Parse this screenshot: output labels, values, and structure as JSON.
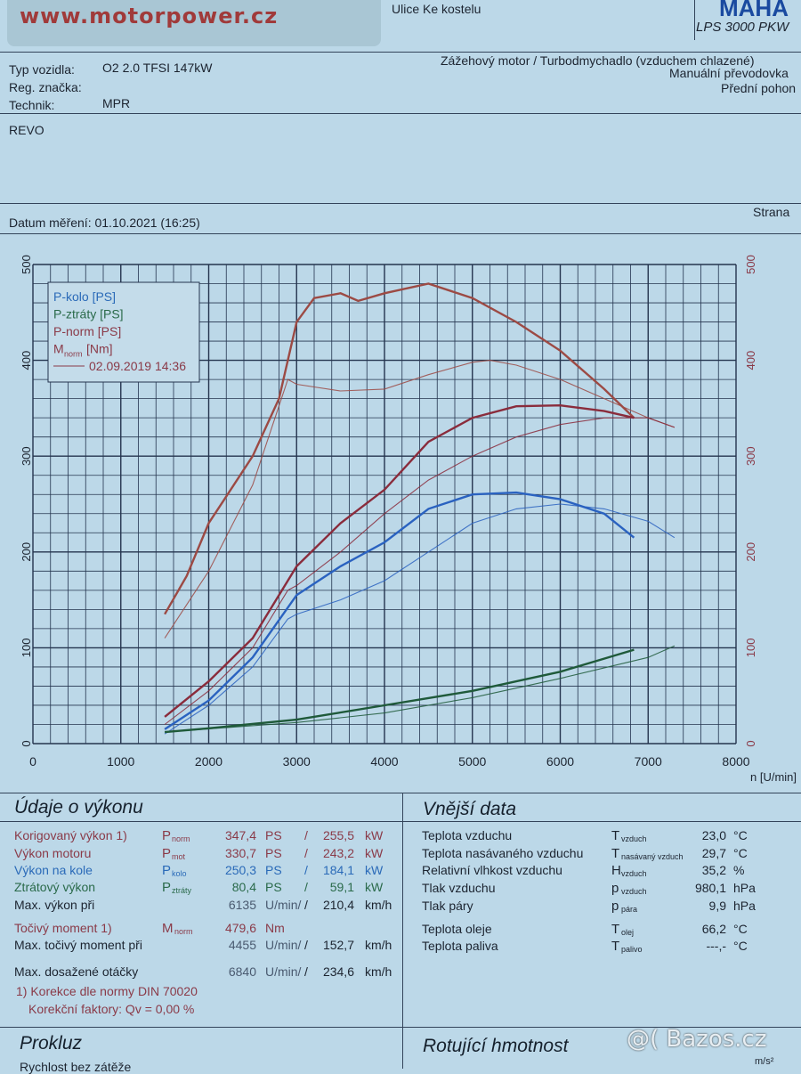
{
  "header": {
    "logo": "www.motorpower.cz",
    "address": "Ulice Ke kostelu",
    "brand": "MAHA",
    "model": "LPS 3000 PKW"
  },
  "vehicle": {
    "type_label": "Typ vozidla:",
    "type": "O2 2.0 TFSI 147kW",
    "reg_label": "Reg. značka:",
    "reg": "",
    "tech_label": "Technik:",
    "tech": "MPR",
    "engine": "Zážehový motor / Turbodmychadlo (vzduchem chlazené)",
    "gearbox": "Manuální převodovka",
    "drive": "Přední pohon",
    "note": "REVO",
    "date": "Datum měření: 01.10.2021 (16:25)",
    "page": "Strana"
  },
  "chart_data": {
    "type": "line",
    "xlabel": "n [U/min]",
    "xlim": [
      0,
      8000
    ],
    "ylim": [
      0,
      500
    ],
    "grid": true,
    "legend_placement": "top-left",
    "xticks": [
      "0",
      "1000",
      "2000",
      "3000",
      "4000",
      "5000",
      "6000",
      "7000",
      "8000"
    ],
    "yticks": [
      "0",
      "100",
      "200",
      "300",
      "400",
      "500"
    ],
    "legend": [
      "P-kolo [PS]",
      "P-ztráty [PS]",
      "P-norm [PS]",
      "Mnorm [Nm]",
      "02.09.2019 14:36"
    ],
    "colors": {
      "kolo": "#2a62c0",
      "ztraty": "#1f5a3a",
      "norm": "#8a2c3c",
      "mnorm": "#9c4a44"
    },
    "series": [
      {
        "name": "Mnorm [Nm]",
        "key": "mnorm",
        "run": "current",
        "x": [
          1500,
          1750,
          2000,
          2500,
          2800,
          3000,
          3200,
          3500,
          3700,
          4000,
          4500,
          5000,
          5500,
          6000,
          6500,
          6840
        ],
        "y": [
          135,
          175,
          230,
          300,
          360,
          440,
          465,
          470,
          462,
          470,
          480,
          465,
          440,
          410,
          370,
          340
        ]
      },
      {
        "name": "Mnorm [Nm]",
        "key": "mnorm",
        "run": "02.09.2019 14:36",
        "x": [
          1500,
          2000,
          2500,
          2900,
          3000,
          3500,
          4000,
          4500,
          5000,
          5200,
          5500,
          6000,
          6500,
          7000,
          7300
        ],
        "y": [
          110,
          180,
          270,
          380,
          375,
          368,
          370,
          385,
          398,
          400,
          395,
          380,
          360,
          340,
          330
        ]
      },
      {
        "name": "P-norm [PS]",
        "key": "norm",
        "run": "current",
        "x": [
          1500,
          2000,
          2500,
          3000,
          3500,
          4000,
          4500,
          5000,
          5500,
          6000,
          6500,
          6840
        ],
        "y": [
          28,
          65,
          110,
          185,
          230,
          265,
          315,
          340,
          352,
          353,
          347,
          340
        ]
      },
      {
        "name": "P-norm [PS]",
        "key": "norm",
        "run": "02.09.2019 14:36",
        "x": [
          1500,
          2000,
          2500,
          2900,
          3000,
          3500,
          4000,
          4500,
          5000,
          5500,
          6000,
          6500,
          7000,
          7300
        ],
        "y": [
          20,
          55,
          100,
          160,
          165,
          200,
          240,
          275,
          300,
          320,
          333,
          340,
          340,
          330
        ]
      },
      {
        "name": "P-kolo [PS]",
        "key": "kolo",
        "run": "current",
        "x": [
          1500,
          2000,
          2500,
          3000,
          3500,
          4000,
          4500,
          5000,
          5500,
          6000,
          6500,
          6840
        ],
        "y": [
          15,
          45,
          90,
          155,
          185,
          210,
          245,
          260,
          262,
          255,
          240,
          215
        ]
      },
      {
        "name": "P-kolo [PS]",
        "key": "kolo",
        "run": "02.09.2019 14:36",
        "x": [
          1500,
          2000,
          2500,
          2900,
          3000,
          3500,
          4000,
          4500,
          5000,
          5500,
          6000,
          6500,
          7000,
          7300
        ],
        "y": [
          10,
          40,
          80,
          130,
          135,
          150,
          170,
          200,
          230,
          245,
          250,
          245,
          232,
          215
        ]
      },
      {
        "name": "P-ztráty [PS]",
        "key": "ztraty",
        "run": "current",
        "x": [
          1500,
          2000,
          3000,
          4000,
          5000,
          6000,
          6840
        ],
        "y": [
          12,
          16,
          25,
          40,
          55,
          75,
          98
        ]
      },
      {
        "name": "P-ztráty [PS]",
        "key": "ztraty",
        "run": "02.09.2019 14:36",
        "x": [
          1500,
          3000,
          4000,
          5000,
          6000,
          7000,
          7300
        ],
        "y": [
          12,
          22,
          32,
          48,
          68,
          90,
          102
        ]
      }
    ]
  },
  "perf": {
    "title": "Údaje o výkonu",
    "rows": [
      {
        "label": "Korigovaný výkon 1)",
        "sym": "P",
        "sub": "norm",
        "v1": "347,4",
        "u1": "PS",
        "v2": "255,5",
        "u2": "kW",
        "cls": "red"
      },
      {
        "label": "Výkon motoru",
        "sym": "P",
        "sub": "mot",
        "v1": "330,7",
        "u1": "PS",
        "v2": "243,2",
        "u2": "kW",
        "cls": "red"
      },
      {
        "label": "Výkon na kole",
        "sym": "P",
        "sub": "kolo",
        "v1": "250,3",
        "u1": "PS",
        "v2": "184,1",
        "u2": "kW",
        "cls": "blue"
      },
      {
        "label": "Ztrátový výkon",
        "sym": "P",
        "sub": "ztráty",
        "v1": "80,4",
        "u1": "PS",
        "v2": "59,1",
        "u2": "kW",
        "cls": "green"
      },
      {
        "label": "Max. výkon při",
        "sym": "",
        "sub": "",
        "v1": "6135",
        "u1": "U/min/",
        "v2": "210,4",
        "u2": "km/h",
        "cls": ""
      },
      {
        "label": "Točivý moment 1)",
        "sym": "M",
        "sub": "norm",
        "v1": "479,6",
        "u1": "Nm",
        "v2": "",
        "u2": "",
        "cls": "red"
      },
      {
        "label": "Max. točivý moment při",
        "sym": "",
        "sub": "",
        "v1": "4455",
        "u1": "U/min/",
        "v2": "152,7",
        "u2": "km/h",
        "cls": ""
      },
      {
        "label": "Max. dosažené otáčky",
        "sym": "",
        "sub": "",
        "v1": "6840",
        "u1": "U/min/",
        "v2": "234,6",
        "u2": "km/h",
        "cls": ""
      }
    ],
    "note1": "1) Korekce dle normy DIN 70020",
    "note2": "Korekční faktory: Qv =   0,00 %"
  },
  "ext": {
    "title": "Vnější data",
    "rows": [
      {
        "label": "Teplota vzduchu",
        "sym": "T",
        "sub": "vzduch",
        "v": "23,0",
        "u": "°C"
      },
      {
        "label": "Teplota nasávaného vzduchu",
        "sym": "T",
        "sub": "nasávaný vzduch",
        "v": "29,7",
        "u": "°C"
      },
      {
        "label": "Relativní vlhkost vzduchu",
        "sym": "H",
        "sub": "vzduch",
        "v": "35,2",
        "u": "%"
      },
      {
        "label": "Tlak vzduchu",
        "sym": "p",
        "sub": "vzduch",
        "v": "980,1",
        "u": "hPa"
      },
      {
        "label": "Tlak páry",
        "sym": "p",
        "sub": "pára",
        "v": "9,9",
        "u": "hPa"
      },
      {
        "label": "Teplota oleje",
        "sym": "T",
        "sub": "olej",
        "v": "66,2",
        "u": "°C"
      },
      {
        "label": "Teplota paliva",
        "sym": "T",
        "sub": "palivo",
        "v": "---,-",
        "u": "°C"
      }
    ]
  },
  "footer": {
    "prokluz": "Prokluz",
    "prokluz_row": "Rychlost bez zátěže",
    "rot": "Rotující hmotnost",
    "rot_unit": "m/s²",
    "watermark": "@( Bazos.cz"
  }
}
